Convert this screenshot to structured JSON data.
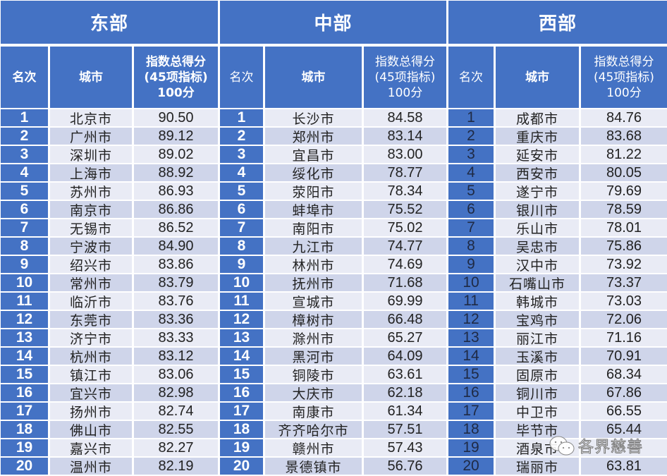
{
  "regions": {
    "east": {
      "title": "东部",
      "headers": {
        "rank": "名次",
        "city": "城市",
        "score": "指数总得分\n(45项指标)\n100分"
      },
      "rows": [
        {
          "rank": "1",
          "city": "北京市",
          "score": "90.50"
        },
        {
          "rank": "2",
          "city": "广州市",
          "score": "89.12"
        },
        {
          "rank": "3",
          "city": "深圳市",
          "score": "89.02"
        },
        {
          "rank": "4",
          "city": "上海市",
          "score": "88.92"
        },
        {
          "rank": "5",
          "city": "苏州市",
          "score": "86.93"
        },
        {
          "rank": "6",
          "city": "南京市",
          "score": "86.86"
        },
        {
          "rank": "7",
          "city": "无锡市",
          "score": "86.52"
        },
        {
          "rank": "8",
          "city": "宁波市",
          "score": "84.90"
        },
        {
          "rank": "9",
          "city": "绍兴市",
          "score": "83.86"
        },
        {
          "rank": "10",
          "city": "常州市",
          "score": "83.79"
        },
        {
          "rank": "11",
          "city": "临沂市",
          "score": "83.76"
        },
        {
          "rank": "12",
          "city": "东莞市",
          "score": "83.36"
        },
        {
          "rank": "13",
          "city": "济宁市",
          "score": "83.33"
        },
        {
          "rank": "14",
          "city": "杭州市",
          "score": "83.12"
        },
        {
          "rank": "15",
          "city": "镇江市",
          "score": "83.06"
        },
        {
          "rank": "16",
          "city": "宜兴市",
          "score": "82.98"
        },
        {
          "rank": "17",
          "city": "扬州市",
          "score": "82.74"
        },
        {
          "rank": "18",
          "city": "佛山市",
          "score": "82.55"
        },
        {
          "rank": "19",
          "city": "嘉兴市",
          "score": "82.27"
        },
        {
          "rank": "20",
          "city": "温州市",
          "score": "82.19"
        }
      ]
    },
    "central": {
      "title": "中部",
      "headers": {
        "rank": "名次",
        "city": "城市",
        "score": "指数总得分\n(45项指标)\n100分"
      },
      "rows": [
        {
          "rank": "1",
          "city": "长沙市",
          "score": "84.58"
        },
        {
          "rank": "2",
          "city": "郑州市",
          "score": "83.14"
        },
        {
          "rank": "3",
          "city": "宜昌市",
          "score": "83.00"
        },
        {
          "rank": "4",
          "city": "绥化市",
          "score": "78.77"
        },
        {
          "rank": "5",
          "city": "荥阳市",
          "score": "78.34"
        },
        {
          "rank": "6",
          "city": "蚌埠市",
          "score": "75.52"
        },
        {
          "rank": "7",
          "city": "南阳市",
          "score": "75.02"
        },
        {
          "rank": "8",
          "city": "九江市",
          "score": "74.77"
        },
        {
          "rank": "9",
          "city": "林州市",
          "score": "74.69"
        },
        {
          "rank": "10",
          "city": "抚州市",
          "score": "71.68"
        },
        {
          "rank": "11",
          "city": "宣城市",
          "score": "69.99"
        },
        {
          "rank": "12",
          "city": "樟树市",
          "score": "66.48"
        },
        {
          "rank": "13",
          "city": "滁州市",
          "score": "65.27"
        },
        {
          "rank": "14",
          "city": "黑河市",
          "score": "64.09"
        },
        {
          "rank": "15",
          "city": "铜陵市",
          "score": "63.61"
        },
        {
          "rank": "16",
          "city": "大庆市",
          "score": "62.18"
        },
        {
          "rank": "17",
          "city": "南康市",
          "score": "61.34"
        },
        {
          "rank": "18",
          "city": "齐齐哈尔市",
          "score": "57.51"
        },
        {
          "rank": "19",
          "city": "赣州市",
          "score": "57.43"
        },
        {
          "rank": "20",
          "city": "景德镇市",
          "score": "56.76"
        }
      ]
    },
    "west": {
      "title": "西部",
      "headers": {
        "rank": "名次",
        "city": "城市",
        "score": "指数总得分\n(45项指标)\n100分"
      },
      "rows": [
        {
          "rank": "1",
          "city": "成都市",
          "score": "84.76"
        },
        {
          "rank": "2",
          "city": "重庆市",
          "score": "83.68"
        },
        {
          "rank": "3",
          "city": "延安市",
          "score": "81.22"
        },
        {
          "rank": "4",
          "city": "西安市",
          "score": "80.05"
        },
        {
          "rank": "5",
          "city": "遂宁市",
          "score": "79.69"
        },
        {
          "rank": "6",
          "city": "银川市",
          "score": "78.59"
        },
        {
          "rank": "7",
          "city": "乐山市",
          "score": "78.01"
        },
        {
          "rank": "8",
          "city": "吴忠市",
          "score": "75.86"
        },
        {
          "rank": "9",
          "city": "汉中市",
          "score": "73.92"
        },
        {
          "rank": "10",
          "city": "石嘴山市",
          "score": "73.37"
        },
        {
          "rank": "11",
          "city": "韩城市",
          "score": "73.03"
        },
        {
          "rank": "12",
          "city": "宝鸡市",
          "score": "72.06"
        },
        {
          "rank": "13",
          "city": "丽江市",
          "score": "71.16"
        },
        {
          "rank": "14",
          "city": "玉溪市",
          "score": "70.91"
        },
        {
          "rank": "15",
          "city": "固原市",
          "score": "68.34"
        },
        {
          "rank": "16",
          "city": "铜川市",
          "score": "67.86"
        },
        {
          "rank": "17",
          "city": "中卫市",
          "score": "66.55"
        },
        {
          "rank": "18",
          "city": "毕节市",
          "score": "65.44"
        },
        {
          "rank": "19",
          "city": "酒泉市",
          "score": ""
        },
        {
          "rank": "20",
          "city": "瑞丽市",
          "score": "63.81"
        }
      ]
    }
  },
  "watermark": {
    "text": "各界慈善",
    "icon": "wechat-icon"
  },
  "colors": {
    "header_blue": "#4472c4",
    "row_light": "#e9ebf5",
    "row_dark": "#cfd5ea",
    "header_text": "#ffffff"
  }
}
